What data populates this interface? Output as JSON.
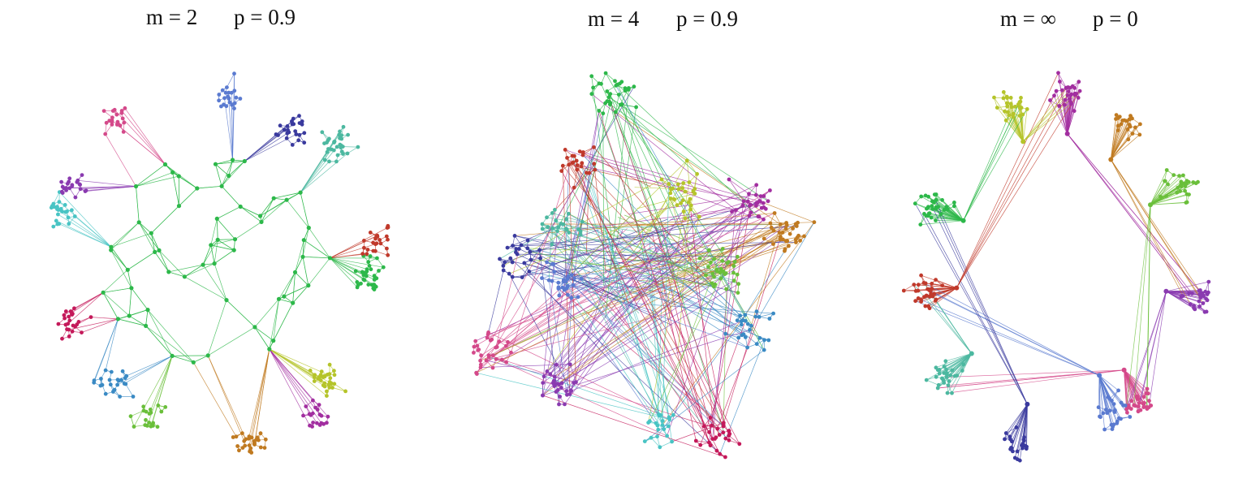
{
  "panels": [
    {
      "labels": [
        "m = 2",
        "p = 0.9"
      ]
    },
    {
      "labels": [
        "m = 4",
        "p = 0.9"
      ]
    },
    {
      "labels": [
        "m = ∞",
        "p = 0"
      ]
    }
  ]
}
